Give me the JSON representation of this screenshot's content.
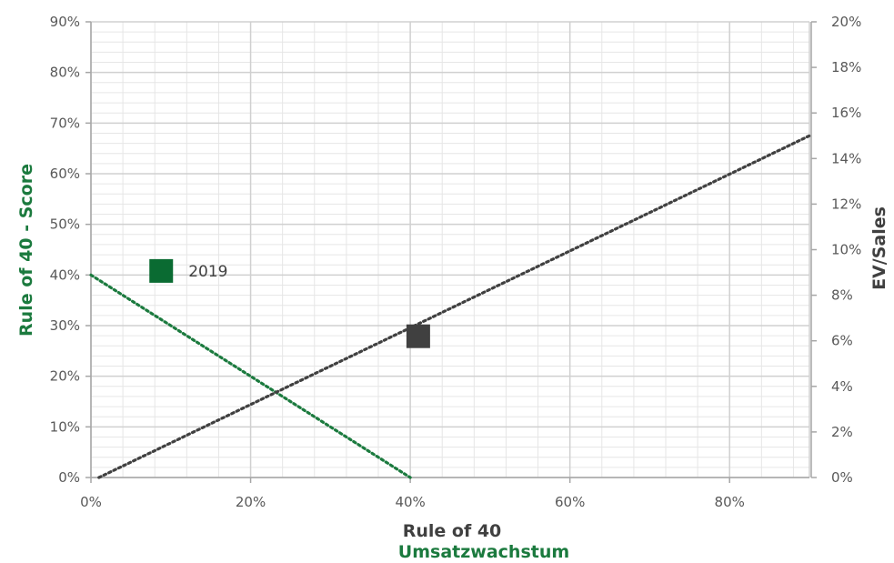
{
  "chart_data": {
    "type": "scatter",
    "x_axis": {
      "range": [
        0,
        90
      ],
      "ticks": [
        0,
        20,
        40,
        60,
        80
      ],
      "tick_labels": [
        "0%",
        "20%",
        "40%",
        "60%",
        "80%"
      ],
      "title_lines": [
        "Rule of 40",
        "Umsatzwachstum"
      ]
    },
    "y_axis_left": {
      "range": [
        0,
        90
      ],
      "ticks": [
        0,
        10,
        20,
        30,
        40,
        50,
        60,
        70,
        80,
        90
      ],
      "tick_labels": [
        "0%",
        "10%",
        "20%",
        "30%",
        "40%",
        "50%",
        "60%",
        "70%",
        "80%",
        "90%"
      ],
      "title": "Rule of 40 - Score"
    },
    "y_axis_right": {
      "range": [
        0,
        20
      ],
      "ticks": [
        0,
        2,
        4,
        6,
        8,
        10,
        12,
        14,
        16,
        18,
        20
      ],
      "tick_labels": [
        "0%",
        "2%",
        "4%",
        "6%",
        "8%",
        "10%",
        "12%",
        "14%",
        "16%",
        "18%",
        "20%"
      ],
      "title": "EV/Sales"
    },
    "lines": [
      {
        "axis": "left",
        "style": "dotted",
        "color": "#1b7a3e",
        "points": [
          [
            0,
            40
          ],
          [
            40,
            0
          ]
        ]
      },
      {
        "axis": "right",
        "style": "dotted",
        "color": "#404040",
        "points": [
          [
            1,
            0
          ],
          [
            90,
            15
          ]
        ]
      }
    ],
    "points": [
      {
        "axis": "left",
        "x": 8.8,
        "y": 40.8,
        "color": "#0a6b32",
        "label": "2019"
      },
      {
        "axis": "right",
        "x": 41,
        "y": 6.2,
        "color": "#404040"
      }
    ],
    "grid": true,
    "colors": {
      "green_title": "#1b7a3e",
      "dark_title": "#404040",
      "grid_major": "#d0d0d0",
      "grid_minor": "#e6e6e6"
    }
  }
}
